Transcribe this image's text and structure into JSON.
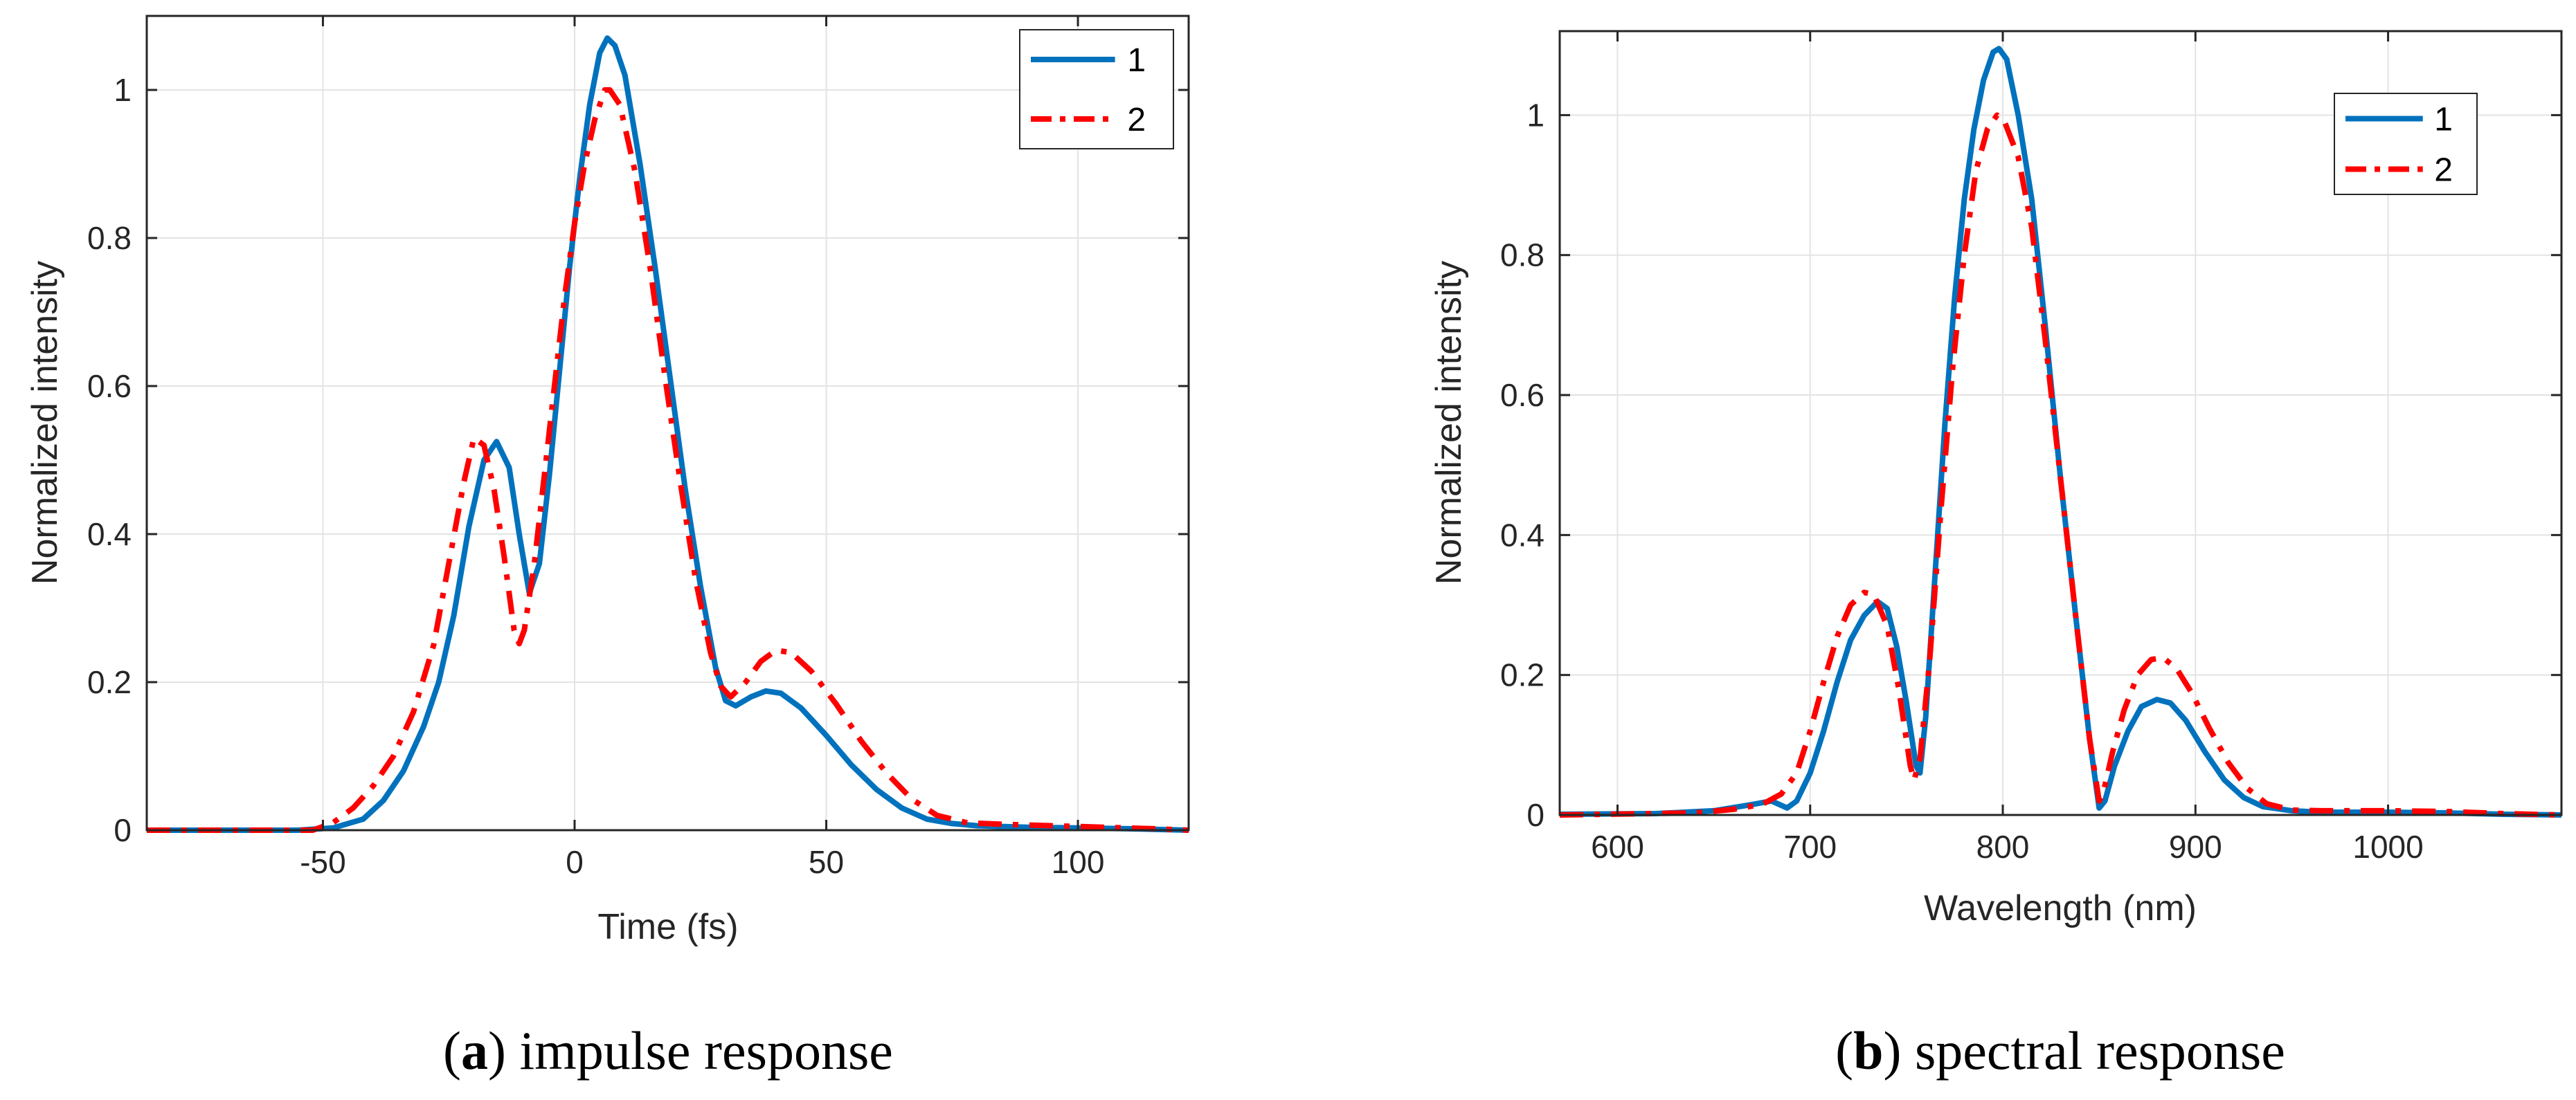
{
  "chart_data": [
    {
      "type": "line",
      "id": "a",
      "caption_letter": "a",
      "caption_text": "impulse response",
      "xlabel": "Time (fs)",
      "ylabel": "Normalized intensity",
      "xlim": [
        -85,
        122
      ],
      "ylim": [
        0,
        1.1
      ],
      "xticks": [
        -50,
        0,
        50,
        100
      ],
      "yticks": [
        0,
        0.2,
        0.4,
        0.6,
        0.8,
        1
      ],
      "grid": true,
      "legend_position": "top-right",
      "series": [
        {
          "name": "1",
          "color": "#0072bd",
          "style": "solid",
          "points": [
            [
              -85,
              0
            ],
            [
              -55,
              0
            ],
            [
              -48,
              0.003
            ],
            [
              -42,
              0.015
            ],
            [
              -38,
              0.04
            ],
            [
              -34,
              0.08
            ],
            [
              -30,
              0.14
            ],
            [
              -27,
              0.2
            ],
            [
              -24,
              0.29
            ],
            [
              -21,
              0.41
            ],
            [
              -18,
              0.5
            ],
            [
              -15.5,
              0.525
            ],
            [
              -13,
              0.49
            ],
            [
              -11,
              0.4
            ],
            [
              -9,
              0.32
            ],
            [
              -7,
              0.36
            ],
            [
              -5,
              0.48
            ],
            [
              -3,
              0.62
            ],
            [
              -1,
              0.76
            ],
            [
              1,
              0.88
            ],
            [
              3,
              0.98
            ],
            [
              5,
              1.05
            ],
            [
              6.5,
              1.07
            ],
            [
              8,
              1.06
            ],
            [
              10,
              1.02
            ],
            [
              13,
              0.9
            ],
            [
              16,
              0.76
            ],
            [
              19,
              0.61
            ],
            [
              22,
              0.46
            ],
            [
              25,
              0.33
            ],
            [
              28,
              0.22
            ],
            [
              30,
              0.175
            ],
            [
              32,
              0.168
            ],
            [
              35,
              0.18
            ],
            [
              38,
              0.188
            ],
            [
              41,
              0.185
            ],
            [
              45,
              0.165
            ],
            [
              50,
              0.128
            ],
            [
              55,
              0.088
            ],
            [
              60,
              0.055
            ],
            [
              65,
              0.03
            ],
            [
              70,
              0.015
            ],
            [
              75,
              0.009
            ],
            [
              80,
              0.006
            ],
            [
              90,
              0.004
            ],
            [
              100,
              0.003
            ],
            [
              110,
              0.002
            ],
            [
              122,
              0
            ]
          ]
        },
        {
          "name": "2",
          "color": "#ff0000",
          "style": "dash-dot",
          "points": [
            [
              -85,
              0
            ],
            [
              -52,
              0
            ],
            [
              -48,
              0.01
            ],
            [
              -44,
              0.03
            ],
            [
              -40,
              0.06
            ],
            [
              -36,
              0.1
            ],
            [
              -32,
              0.16
            ],
            [
              -28,
              0.25
            ],
            [
              -25,
              0.36
            ],
            [
              -22,
              0.47
            ],
            [
              -20,
              0.53
            ],
            [
              -18,
              0.52
            ],
            [
              -16,
              0.46
            ],
            [
              -14,
              0.37
            ],
            [
              -12,
              0.27
            ],
            [
              -11,
              0.252
            ],
            [
              -10,
              0.27
            ],
            [
              -8,
              0.36
            ],
            [
              -6,
              0.48
            ],
            [
              -4,
              0.6
            ],
            [
              -2,
              0.72
            ],
            [
              0,
              0.82
            ],
            [
              2,
              0.9
            ],
            [
              4,
              0.96
            ],
            [
              6,
              1.0
            ],
            [
              7,
              1.0
            ],
            [
              9,
              0.98
            ],
            [
              12,
              0.89
            ],
            [
              15,
              0.76
            ],
            [
              18,
              0.61
            ],
            [
              21,
              0.47
            ],
            [
              24,
              0.34
            ],
            [
              27,
              0.24
            ],
            [
              29,
              0.195
            ],
            [
              31,
              0.18
            ],
            [
              34,
              0.2
            ],
            [
              37,
              0.228
            ],
            [
              40,
              0.243
            ],
            [
              43,
              0.24
            ],
            [
              47,
              0.215
            ],
            [
              52,
              0.17
            ],
            [
              57,
              0.12
            ],
            [
              62,
              0.077
            ],
            [
              67,
              0.042
            ],
            [
              72,
              0.02
            ],
            [
              78,
              0.01
            ],
            [
              85,
              0.008
            ],
            [
              95,
              0.006
            ],
            [
              105,
              0.004
            ],
            [
              115,
              0.002
            ],
            [
              122,
              0
            ]
          ]
        }
      ]
    },
    {
      "type": "line",
      "id": "b",
      "caption_letter": "b",
      "caption_text": "spectral response",
      "xlabel": "Wavelength (nm)",
      "ylabel": "Normalized intensity",
      "xlim": [
        570,
        1090
      ],
      "ylim": [
        0,
        1.12
      ],
      "xticks": [
        600,
        700,
        800,
        900,
        1000
      ],
      "yticks": [
        0,
        0.2,
        0.4,
        0.6,
        0.8,
        1
      ],
      "grid": true,
      "legend_position": "top-right",
      "series": [
        {
          "name": "1",
          "color": "#0072bd",
          "style": "solid",
          "points": [
            [
              570,
              0.001
            ],
            [
              620,
              0.002
            ],
            [
              650,
              0.006
            ],
            [
              670,
              0.015
            ],
            [
              680,
              0.02
            ],
            [
              688,
              0.01
            ],
            [
              693,
              0.02
            ],
            [
              700,
              0.06
            ],
            [
              707,
              0.12
            ],
            [
              714,
              0.19
            ],
            [
              721,
              0.25
            ],
            [
              728,
              0.285
            ],
            [
              735,
              0.305
            ],
            [
              740,
              0.295
            ],
            [
              745,
              0.24
            ],
            [
              750,
              0.16
            ],
            [
              755,
              0.07
            ],
            [
              757,
              0.06
            ],
            [
              760,
              0.14
            ],
            [
              765,
              0.35
            ],
            [
              770,
              0.56
            ],
            [
              775,
              0.74
            ],
            [
              780,
              0.88
            ],
            [
              785,
              0.98
            ],
            [
              790,
              1.05
            ],
            [
              795,
              1.09
            ],
            [
              798,
              1.095
            ],
            [
              802,
              1.08
            ],
            [
              808,
              1.0
            ],
            [
              815,
              0.88
            ],
            [
              822,
              0.7
            ],
            [
              830,
              0.48
            ],
            [
              838,
              0.28
            ],
            [
              845,
              0.11
            ],
            [
              850,
              0.01
            ],
            [
              853,
              0.02
            ],
            [
              858,
              0.07
            ],
            [
              865,
              0.12
            ],
            [
              872,
              0.155
            ],
            [
              880,
              0.165
            ],
            [
              887,
              0.16
            ],
            [
              895,
              0.135
            ],
            [
              905,
              0.09
            ],
            [
              915,
              0.05
            ],
            [
              925,
              0.025
            ],
            [
              935,
              0.012
            ],
            [
              950,
              0.006
            ],
            [
              965,
              0.004
            ],
            [
              980,
              0.004
            ],
            [
              1000,
              0.004
            ],
            [
              1030,
              0.003
            ],
            [
              1060,
              0.001
            ],
            [
              1090,
              0
            ]
          ]
        },
        {
          "name": "2",
          "color": "#ff0000",
          "style": "dash-dot",
          "points": [
            [
              570,
              0
            ],
            [
              640,
              0.003
            ],
            [
              660,
              0.008
            ],
            [
              675,
              0.015
            ],
            [
              685,
              0.03
            ],
            [
              693,
              0.06
            ],
            [
              700,
              0.12
            ],
            [
              707,
              0.19
            ],
            [
              714,
              0.255
            ],
            [
              721,
              0.3
            ],
            [
              728,
              0.318
            ],
            [
              733,
              0.315
            ],
            [
              740,
              0.27
            ],
            [
              746,
              0.18
            ],
            [
              752,
              0.07
            ],
            [
              754,
              0.05
            ],
            [
              757,
              0.08
            ],
            [
              762,
              0.22
            ],
            [
              768,
              0.44
            ],
            [
              774,
              0.64
            ],
            [
              780,
              0.8
            ],
            [
              786,
              0.92
            ],
            [
              792,
              0.98
            ],
            [
              797,
              1.0
            ],
            [
              801,
              0.99
            ],
            [
              808,
              0.94
            ],
            [
              815,
              0.84
            ],
            [
              822,
              0.68
            ],
            [
              830,
              0.48
            ],
            [
              838,
              0.28
            ],
            [
              845,
              0.11
            ],
            [
              850,
              0.02
            ],
            [
              852,
              0.03
            ],
            [
              857,
              0.09
            ],
            [
              863,
              0.15
            ],
            [
              870,
              0.2
            ],
            [
              877,
              0.222
            ],
            [
              883,
              0.225
            ],
            [
              890,
              0.21
            ],
            [
              898,
              0.175
            ],
            [
              907,
              0.125
            ],
            [
              917,
              0.075
            ],
            [
              927,
              0.038
            ],
            [
              937,
              0.016
            ],
            [
              950,
              0.007
            ],
            [
              965,
              0.006
            ],
            [
              980,
              0.006
            ],
            [
              1000,
              0.006
            ],
            [
              1030,
              0.005
            ],
            [
              1060,
              0.002
            ],
            [
              1090,
              0
            ]
          ]
        }
      ]
    }
  ]
}
